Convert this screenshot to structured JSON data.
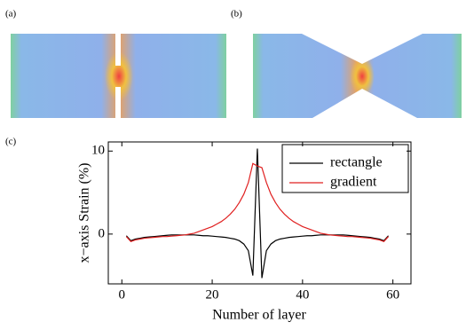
{
  "panels": {
    "a": "(a)",
    "b": "(b)",
    "c": "(c)"
  },
  "chart_data": {
    "type": "line",
    "xlabel": "Number of layer",
    "ylabel": "x−axis Strain (%)",
    "x": [
      1,
      2,
      3,
      4,
      5,
      6,
      7,
      8,
      9,
      10,
      11,
      12,
      13,
      14,
      15,
      16,
      17,
      18,
      19,
      20,
      21,
      22,
      23,
      24,
      25,
      26,
      27,
      28,
      29,
      30,
      31,
      32,
      33,
      34,
      35,
      36,
      37,
      38,
      39,
      40,
      41,
      42,
      43,
      44,
      45,
      46,
      47,
      48,
      49,
      50,
      51,
      52,
      53,
      54,
      55,
      56,
      57,
      58,
      59
    ],
    "series": [
      {
        "name": "rectangle",
        "color": "#000000",
        "values": [
          -0.2,
          -0.8,
          -0.6,
          -0.5,
          -0.4,
          -0.35,
          -0.3,
          -0.25,
          -0.2,
          -0.15,
          -0.1,
          -0.1,
          -0.1,
          -0.1,
          -0.1,
          -0.1,
          -0.15,
          -0.2,
          -0.2,
          -0.25,
          -0.3,
          -0.35,
          -0.4,
          -0.5,
          -0.6,
          -0.8,
          -1.2,
          -2.0,
          -5.0,
          10.3,
          -5.3,
          -2.0,
          -1.2,
          -0.8,
          -0.6,
          -0.5,
          -0.4,
          -0.35,
          -0.3,
          -0.25,
          -0.2,
          -0.2,
          -0.15,
          -0.1,
          -0.1,
          -0.1,
          -0.1,
          -0.1,
          -0.1,
          -0.15,
          -0.2,
          -0.25,
          -0.3,
          -0.35,
          -0.4,
          -0.5,
          -0.6,
          -0.8,
          -0.2
        ]
      },
      {
        "name": "gradient",
        "color": "#e02020",
        "values": [
          -0.3,
          -0.9,
          -0.7,
          -0.6,
          -0.5,
          -0.45,
          -0.4,
          -0.35,
          -0.3,
          -0.3,
          -0.25,
          -0.2,
          -0.15,
          -0.1,
          0,
          0.1,
          0.3,
          0.5,
          0.7,
          0.9,
          1.2,
          1.5,
          1.9,
          2.4,
          3.0,
          3.8,
          4.8,
          6.2,
          8.5,
          8.2,
          8.0,
          6.2,
          4.8,
          3.8,
          3.0,
          2.4,
          1.9,
          1.5,
          1.2,
          0.9,
          0.7,
          0.5,
          0.3,
          0.1,
          0,
          -0.1,
          -0.15,
          -0.2,
          -0.25,
          -0.3,
          -0.3,
          -0.35,
          -0.4,
          -0.45,
          -0.5,
          -0.6,
          -0.7,
          -0.9,
          -0.3
        ]
      }
    ],
    "xlim": [
      -3,
      64
    ],
    "ylim": [
      -6,
      11.1
    ],
    "xticks": [
      0,
      20,
      40,
      60
    ],
    "yticks": [
      0,
      10
    ],
    "legend": "upper right"
  }
}
